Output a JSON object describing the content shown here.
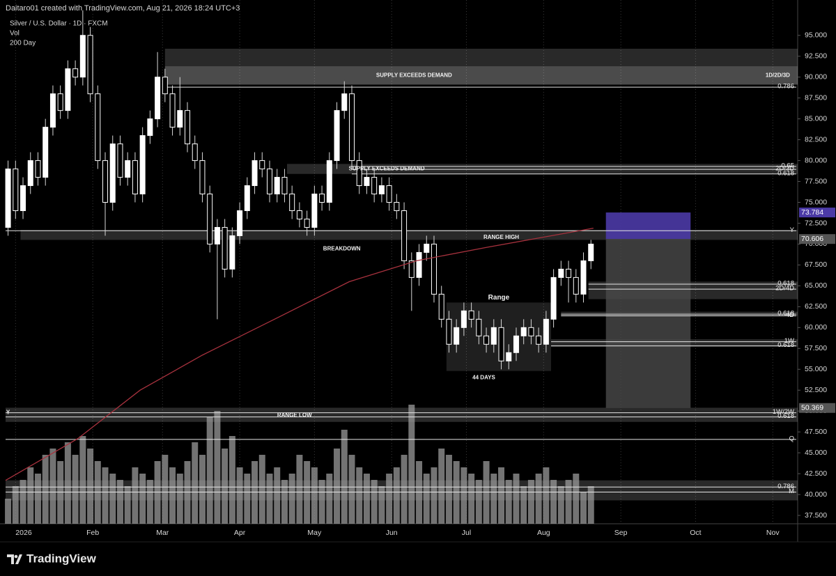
{
  "chart_data": {
    "type": "candlestick",
    "credit": "Daitaro01 created with TradingView.com, Aug 21, 2026 18:24 UTC+3",
    "title": "Silver / U.S. Dollar · 1D · FXCM",
    "legend_items": [
      "Vol",
      "200 Day"
    ],
    "brand": "TradingView",
    "up_color": "#ffffff",
    "down_color": "#000000",
    "wick_color": "#d8d8d8",
    "x": [
      -3,
      0,
      3,
      6,
      9,
      12,
      15,
      18,
      21,
      24,
      27,
      30,
      33,
      36,
      39,
      42,
      45,
      48,
      51,
      54,
      57,
      60,
      63,
      66,
      69,
      72,
      75,
      78,
      81,
      84,
      87,
      90,
      93,
      96,
      99,
      102,
      105,
      108,
      111,
      114,
      117,
      120,
      123,
      126,
      129,
      132,
      135,
      138,
      141,
      144,
      147,
      150,
      153,
      156,
      159,
      162,
      165,
      168,
      171,
      174,
      177,
      180,
      183,
      186,
      189,
      192,
      195,
      198,
      201,
      204,
      207,
      210,
      213,
      216,
      219,
      222,
      225,
      228,
      231
    ],
    "open": [
      72,
      79,
      74,
      77,
      80,
      78,
      84,
      88,
      86,
      91,
      90,
      95,
      88,
      80,
      75,
      82,
      78,
      80,
      76,
      83,
      85,
      90,
      88,
      84,
      86,
      82,
      80,
      76,
      70,
      72,
      67,
      71,
      74,
      77,
      80,
      79,
      76,
      78,
      76,
      74,
      73,
      72,
      76,
      75,
      80,
      86,
      88,
      80,
      77,
      78,
      76,
      77,
      75,
      74,
      68,
      66,
      69,
      70,
      64,
      61,
      58,
      60,
      62,
      61,
      59,
      58,
      60,
      56,
      57,
      59,
      60,
      59,
      58,
      61,
      66,
      67,
      66,
      64,
      68
    ],
    "high": [
      80,
      80,
      78,
      81,
      81,
      85,
      89,
      89,
      92,
      92,
      98,
      96,
      89,
      81,
      83,
      83,
      81,
      81,
      84,
      86,
      93,
      91,
      89,
      90,
      87,
      83,
      81,
      77,
      73,
      73,
      72,
      75,
      78,
      81,
      81,
      80,
      79,
      79,
      77,
      75,
      74,
      77,
      77,
      81,
      87,
      89.5,
      89,
      81,
      79,
      79,
      78,
      78,
      76,
      75,
      69,
      70,
      71,
      71,
      65,
      62,
      61,
      63,
      63,
      62,
      60,
      61,
      61,
      58,
      60,
      61,
      61,
      60,
      62,
      67,
      68,
      68,
      67,
      69,
      70.5
    ],
    "low": [
      71,
      73,
      73,
      76,
      77,
      77,
      83,
      85,
      85,
      89,
      89,
      87,
      79,
      71,
      74,
      77,
      77,
      75,
      75,
      82,
      84,
      87,
      83,
      83,
      81,
      79,
      75,
      69,
      61,
      66,
      66,
      70,
      73,
      76,
      78,
      75,
      75,
      75,
      73,
      72,
      71,
      71,
      74,
      74,
      79,
      85,
      79,
      76,
      76,
      75,
      75,
      74,
      73,
      67,
      62,
      65,
      68,
      63,
      60,
      57,
      57,
      59,
      60,
      58,
      57,
      57,
      55,
      55,
      56,
      58,
      58,
      57,
      57,
      60,
      65,
      63,
      63,
      63,
      67
    ],
    "close": [
      79,
      74,
      77,
      80,
      78,
      84,
      88,
      86,
      91,
      90,
      95,
      88,
      80,
      75,
      82,
      78,
      80,
      76,
      83,
      85,
      90,
      88,
      84,
      86,
      82,
      80,
      76,
      70,
      72,
      67,
      71,
      74,
      77,
      80,
      79,
      76,
      78,
      76,
      74,
      73,
      72,
      76,
      75,
      80,
      86,
      88,
      80,
      77,
      78,
      76,
      77,
      75,
      74,
      68,
      66,
      69,
      70,
      64,
      61,
      58,
      60,
      62,
      61,
      59,
      58,
      60,
      56,
      57,
      59,
      60,
      59,
      58,
      61,
      66,
      67,
      66,
      64,
      68,
      70
    ],
    "volume": [
      20,
      30,
      35,
      45,
      40,
      55,
      60,
      50,
      65,
      55,
      70,
      60,
      50,
      45,
      40,
      35,
      30,
      45,
      40,
      35,
      50,
      55,
      45,
      40,
      50,
      65,
      55,
      85,
      90,
      60,
      70,
      45,
      40,
      50,
      55,
      40,
      45,
      35,
      40,
      55,
      50,
      45,
      35,
      40,
      60,
      75,
      55,
      45,
      40,
      35,
      30,
      40,
      45,
      55,
      95,
      50,
      40,
      45,
      60,
      55,
      50,
      45,
      40,
      35,
      50,
      40,
      45,
      35,
      40,
      30,
      35,
      40,
      45,
      35,
      30,
      35,
      40,
      25,
      30
    ],
    "volume_color": "#9a9a9a",
    "ma": {
      "name": "200 Day",
      "color": "#a8323e",
      "x": [
        -4,
        25,
        50,
        75,
        106,
        134,
        161,
        189,
        232
      ],
      "values": [
        41.7,
        46.7,
        52.5,
        56.7,
        61.3,
        65.5,
        68,
        69.6,
        71.9
      ]
    },
    "xlim": [
      -4,
      314
    ],
    "xticks": [
      {
        "value": 0,
        "label": "2026"
      },
      {
        "value": 31,
        "label": "Feb"
      },
      {
        "value": 59,
        "label": "Mar"
      },
      {
        "value": 90,
        "label": "Apr"
      },
      {
        "value": 120,
        "label": "May"
      },
      {
        "value": 151,
        "label": "Jun"
      },
      {
        "value": 181,
        "label": "Jul"
      },
      {
        "value": 212,
        "label": "Aug"
      },
      {
        "value": 243,
        "label": "Sep"
      },
      {
        "value": 273,
        "label": "Oct"
      },
      {
        "value": 304,
        "label": "Nov"
      }
    ],
    "ylim": [
      36.5,
      97.4
    ],
    "yticks": [
      {
        "value": 37.5,
        "label": "37.500"
      },
      {
        "value": 40,
        "label": "40.000"
      },
      {
        "value": 42.5,
        "label": "42.500"
      },
      {
        "value": 45,
        "label": "45.000"
      },
      {
        "value": 47.5,
        "label": "47.500"
      },
      {
        "value": 50,
        "label": "50.000"
      },
      {
        "value": 52.5,
        "label": "52.500"
      },
      {
        "value": 55,
        "label": "55.000"
      },
      {
        "value": 57.5,
        "label": "57.500"
      },
      {
        "value": 60,
        "label": "60.000"
      },
      {
        "value": 62.5,
        "label": "62.500"
      },
      {
        "value": 65,
        "label": "65.000"
      },
      {
        "value": 67.5,
        "label": "67.500"
      },
      {
        "value": 70,
        "label": "70.000"
      },
      {
        "value": 72.5,
        "label": "72.500"
      },
      {
        "value": 75,
        "label": "75.000"
      },
      {
        "value": 77.5,
        "label": "77.500"
      },
      {
        "value": 80,
        "label": "80.000"
      },
      {
        "value": 82.5,
        "label": "82.500"
      },
      {
        "value": 85,
        "label": "85.000"
      },
      {
        "value": 87.5,
        "label": "87.500"
      },
      {
        "value": 90,
        "label": "90.000"
      },
      {
        "value": 92.5,
        "label": "92.500"
      },
      {
        "value": 95,
        "label": "95.000"
      }
    ],
    "position": {
      "from": 237,
      "to": 271,
      "target": 73.784,
      "entry": 70.606,
      "stop": 50.369,
      "target_color": "#4b3aa6",
      "stop_color": "#4a4a4a"
    },
    "zones": [
      {
        "from": 60,
        "low": 89.1,
        "high": 93.4
      },
      {
        "from": 60,
        "low": 89.1,
        "high": 91.3
      },
      {
        "from": 109,
        "low": 78.4,
        "high": 79.6
      },
      {
        "from": 2,
        "low": 70.5,
        "high": 71.7
      },
      {
        "from": 230,
        "low": 63.4,
        "high": 65.5
      },
      {
        "from": 219,
        "low": 61.4,
        "high": 61.9
      },
      {
        "from": 215,
        "low": 57.7,
        "high": 58.6
      },
      {
        "from": -4,
        "low": 48.7,
        "high": 50.4
      },
      {
        "from": -4,
        "low": 39.3,
        "high": 41.7
      }
    ],
    "range_box": {
      "from": 173,
      "to": 215,
      "low": 54.8,
      "high": 63.0
    },
    "levels": [
      {
        "label": "0.786",
        "price": 88.8,
        "from": 60
      },
      {
        "label": "0.65",
        "price": 79.3,
        "from": 135
      },
      {
        "label": "2D/3D",
        "price": 78.95,
        "from": 135
      },
      {
        "label": "0.618",
        "price": 78.4,
        "from": 135
      },
      {
        "label": "Y",
        "price": 71.6,
        "from": -4
      },
      {
        "label": "0.618",
        "price": 65.2,
        "from": 230
      },
      {
        "label": "2D/4D",
        "price": 64.6,
        "from": 230
      },
      {
        "label": "0.618",
        "price": 61.6,
        "from": 219
      },
      {
        "label": "4D",
        "price": 61.4,
        "from": 219
      },
      {
        "label": "1W",
        "price": 58.3,
        "from": 215
      },
      {
        "label": "0.618",
        "price": 57.8,
        "from": 215
      },
      {
        "label": "1W/2W",
        "price": 49.8,
        "from": -4
      },
      {
        "label": "0.618",
        "price": 49.3,
        "from": -4
      },
      {
        "label": "Q",
        "price": 46.6,
        "from": -4
      },
      {
        "label": "0.786",
        "price": 40.9,
        "from": -4
      },
      {
        "label": "M",
        "price": 40.3,
        "from": -4
      }
    ],
    "annotations": [
      {
        "text": "SUPPLY EXCEEDS DEMAND",
        "price": 90.2,
        "at": 160
      },
      {
        "text": "1D/2D/3D",
        "price": 90.2,
        "at": 306
      },
      {
        "text": "SUPPLY EXCEEDS DEMAND",
        "price": 79.0,
        "at": 149
      },
      {
        "text": "RANGE HIGH",
        "price": 70.8,
        "at": 195
      },
      {
        "text": "BREAKDOWN",
        "price": 69.4,
        "at": 131
      },
      {
        "text": "Range",
        "price": 63.6,
        "at": 194
      },
      {
        "text": "44 DAYS",
        "price": 54.0,
        "at": 188
      },
      {
        "text": "RANGE LOW",
        "price": 49.5,
        "at": 112
      },
      {
        "text": "Y",
        "price": 49.8,
        "at": -3
      }
    ]
  }
}
